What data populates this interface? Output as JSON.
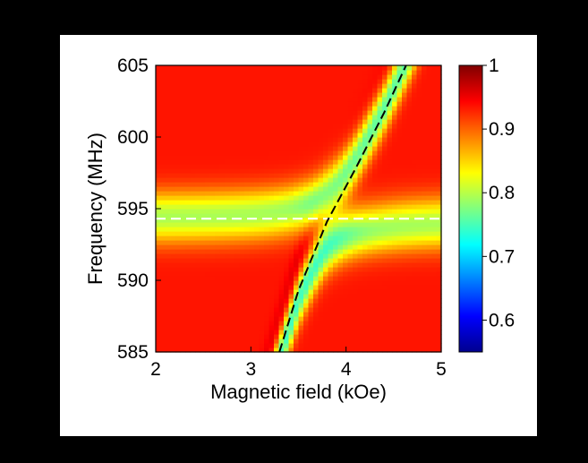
{
  "chart_data": {
    "type": "heatmap",
    "title": "",
    "xlabel": "Magnetic field (kOe)",
    "ylabel": "Frequency (MHz)",
    "xlim": [
      2,
      5
    ],
    "ylim": [
      585,
      605
    ],
    "x_ticks": [
      "2",
      "3",
      "4",
      "5"
    ],
    "y_ticks": [
      "585",
      "590",
      "595",
      "600",
      "605"
    ],
    "colorbar": {
      "range": [
        0.55,
        1.0
      ],
      "ticks": [
        "0.6",
        "0.7",
        "0.8",
        "0.9",
        "1"
      ],
      "colormap": "jet"
    },
    "uncoupled_resonator_frequency_MHz": 594.3,
    "magnon_mode_line": {
      "x": [
        3.3,
        3.5,
        3.8,
        4.1,
        4.4,
        4.63
      ],
      "y": [
        585.0,
        589.3,
        594.1,
        597.8,
        601.7,
        605.0
      ]
    },
    "style": {
      "background_frame": "#000000",
      "panel": "#ffffff",
      "resonator_line_color": "#ffffff",
      "magnon_line_color": "#000000"
    }
  }
}
